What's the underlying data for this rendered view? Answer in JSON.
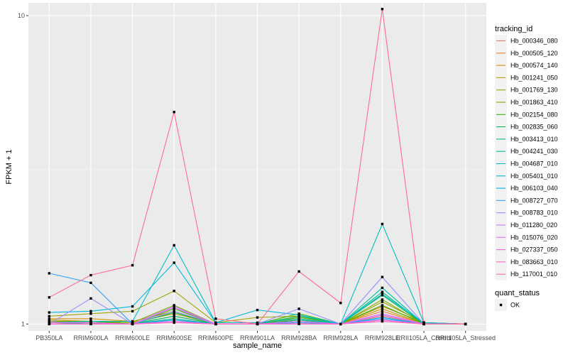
{
  "chart_data": {
    "type": "line",
    "xlabel": "sample_name",
    "ylabel": "FPKM + 1",
    "y_scale": "log10",
    "ylim": [
      0.95,
      11
    ],
    "y_ticks": [
      {
        "value": 1,
        "label": "1"
      },
      {
        "value": 10,
        "label": "10"
      }
    ],
    "grid": true,
    "categories": [
      "PB350LA",
      "RRIM600LA",
      "RRIM600LE",
      "RRIM600SE",
      "RRIM600PE",
      "RRIM901LA",
      "RRIM928BA",
      "RRIM928LA",
      "RRIM928LE",
      "RRII105LA_Control",
      "RRII105LA_Stressed"
    ],
    "legend": {
      "title": "tracking_id",
      "position": "right",
      "shape_title": "quant_status",
      "shape_entries": [
        "OK"
      ]
    },
    "series": [
      {
        "name": "Hb_000346_080",
        "color": "#F8766D",
        "values": [
          1.01,
          1.01,
          1.0,
          1.04,
          1.0,
          1.0,
          1.01,
          1.0,
          1.06,
          1.0,
          1.0
        ]
      },
      {
        "name": "Hb_000505_120",
        "color": "#EA8331",
        "values": [
          1.02,
          1.01,
          1.0,
          1.06,
          1.0,
          1.0,
          1.02,
          1.0,
          1.1,
          1.0,
          1.0
        ]
      },
      {
        "name": "Hb_000574_140",
        "color": "#D89000",
        "values": [
          1.04,
          1.04,
          1.02,
          1.1,
          1.0,
          1.0,
          1.04,
          1.0,
          1.14,
          1.01,
          1.0
        ]
      },
      {
        "name": "Hb_001241_050",
        "color": "#C09B00",
        "values": [
          1.03,
          1.02,
          1.01,
          1.08,
          1.0,
          1.0,
          1.03,
          1.0,
          1.12,
          1.0,
          1.0
        ]
      },
      {
        "name": "Hb_001769_130",
        "color": "#A3A500",
        "values": [
          1.06,
          1.08,
          1.1,
          1.28,
          1.01,
          1.05,
          1.06,
          1.0,
          1.18,
          1.01,
          1.0
        ]
      },
      {
        "name": "Hb_001863_410",
        "color": "#7CAE00",
        "values": [
          1.02,
          1.02,
          1.01,
          1.15,
          1.0,
          1.0,
          1.05,
          1.0,
          1.2,
          1.0,
          1.0
        ]
      },
      {
        "name": "Hb_002154_080",
        "color": "#39B600",
        "values": [
          1.01,
          1.02,
          1.0,
          1.12,
          1.0,
          1.0,
          1.08,
          1.0,
          1.15,
          1.0,
          1.0
        ]
      },
      {
        "name": "Hb_002835_060",
        "color": "#00BB4E",
        "values": [
          1.01,
          1.01,
          1.0,
          1.09,
          1.0,
          1.0,
          1.06,
          1.0,
          1.24,
          1.0,
          1.0
        ]
      },
      {
        "name": "Hb_003413_010",
        "color": "#00BF7D",
        "values": [
          1.0,
          1.01,
          1.0,
          1.06,
          1.0,
          1.0,
          1.03,
          1.0,
          1.27,
          1.0,
          1.0
        ]
      },
      {
        "name": "Hb_004241_030",
        "color": "#00C1A3",
        "values": [
          1.0,
          1.0,
          1.0,
          1.04,
          1.0,
          1.0,
          1.02,
          1.0,
          1.31,
          1.0,
          1.0
        ]
      },
      {
        "name": "Hb_004687_010",
        "color": "#00BFC4",
        "values": [
          1.01,
          1.02,
          1.02,
          1.8,
          1.01,
          1.01,
          1.04,
          1.0,
          2.11,
          1.01,
          1.0
        ]
      },
      {
        "name": "Hb_005401_010",
        "color": "#00BAE0",
        "values": [
          1.09,
          1.1,
          1.14,
          1.58,
          1.01,
          1.11,
          1.07,
          1.0,
          1.25,
          1.01,
          1.0
        ]
      },
      {
        "name": "Hb_006103_040",
        "color": "#00B0F6",
        "values": [
          1.0,
          1.0,
          1.0,
          1.03,
          1.0,
          1.0,
          1.02,
          1.0,
          1.05,
          1.0,
          1.0
        ]
      },
      {
        "name": "Hb_008727_070",
        "color": "#35A2FF",
        "values": [
          1.46,
          1.36,
          1.0,
          1.02,
          1.0,
          1.0,
          1.01,
          1.0,
          1.04,
          1.0,
          1.0
        ]
      },
      {
        "name": "Hb_008783_010",
        "color": "#9590FF",
        "values": [
          1.0,
          1.21,
          1.0,
          1.1,
          1.0,
          1.0,
          1.12,
          1.0,
          1.42,
          1.0,
          1.0
        ]
      },
      {
        "name": "Hb_011280_020",
        "color": "#C77CFF",
        "values": [
          1.0,
          1.0,
          1.0,
          1.14,
          1.0,
          1.0,
          1.0,
          1.0,
          1.07,
          1.0,
          1.0
        ]
      },
      {
        "name": "Hb_015076_020",
        "color": "#E76BF3",
        "values": [
          1.01,
          1.01,
          1.0,
          1.13,
          1.0,
          1.0,
          1.02,
          1.0,
          1.08,
          1.0,
          1.0
        ]
      },
      {
        "name": "Hb_027337_050",
        "color": "#FA62DB",
        "values": [
          1.0,
          1.0,
          1.0,
          1.02,
          1.0,
          1.0,
          1.0,
          1.0,
          1.03,
          1.0,
          1.0
        ]
      },
      {
        "name": "Hb_083663_010",
        "color": "#FF62BC",
        "values": [
          1.0,
          1.0,
          1.0,
          1.01,
          1.0,
          1.0,
          1.0,
          1.0,
          1.02,
          1.0,
          1.0
        ]
      },
      {
        "name": "Hb_117001_010",
        "color": "#FF6C91",
        "values": [
          1.22,
          1.44,
          1.55,
          4.87,
          1.04,
          1.0,
          1.48,
          1.17,
          10.5,
          1.0,
          1.0
        ]
      }
    ]
  }
}
